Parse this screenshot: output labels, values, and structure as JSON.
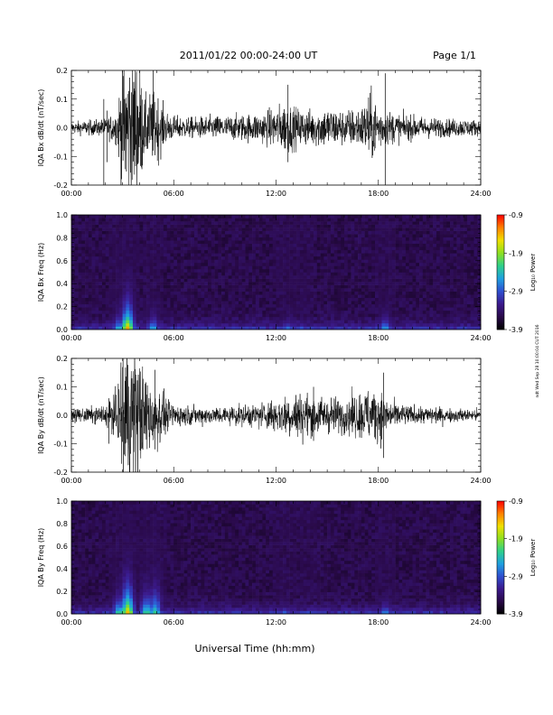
{
  "header": {
    "title": "2011/01/22  00:00-24:00 UT",
    "page": "Page 1/1"
  },
  "footer": {
    "xlabel": "Universal Time (hh:mm)",
    "stamp": "ndt Wed Sep 28 10:00:04 CUT 2016"
  },
  "colors": {
    "trace": "#000000",
    "spectrogram_background": "#1a0d2e",
    "colormap": [
      "#000000",
      "#2a0a4a",
      "#3b1a8c",
      "#2f4fd0",
      "#1fa0e0",
      "#2fd08a",
      "#8fe020",
      "#f0e000",
      "#ff8000",
      "#ff0000"
    ]
  },
  "chart_data": [
    {
      "type": "line",
      "panel": "Bx waveform",
      "ylabel": "IQA Bx dB/dt (nT/sec)",
      "x_unit": "hours UT",
      "xlim": [
        0,
        24
      ],
      "ylim": [
        -0.2,
        0.2
      ],
      "xticks": [
        "00:00",
        "06:00",
        "12:00",
        "18:00",
        "24:00"
      ],
      "yticks": [
        "-0.2",
        "-0.1",
        "0.0",
        "0.1",
        "0.2"
      ],
      "envelope": {
        "x": [
          0,
          1,
          2,
          2.7,
          3.0,
          3.5,
          3.9,
          4.3,
          4.7,
          5.0,
          5.5,
          6,
          7,
          8,
          9,
          10,
          11,
          11.5,
          12,
          12.7,
          13,
          14,
          15,
          16,
          17,
          17.5,
          18,
          18.5,
          19,
          20,
          21,
          22,
          23,
          24
        ],
        "amplitude": [
          0.02,
          0.025,
          0.03,
          0.06,
          0.25,
          0.25,
          0.25,
          0.1,
          0.12,
          0.12,
          0.06,
          0.04,
          0.035,
          0.04,
          0.04,
          0.045,
          0.05,
          0.06,
          0.07,
          0.09,
          0.07,
          0.06,
          0.07,
          0.06,
          0.07,
          0.12,
          0.08,
          0.06,
          0.05,
          0.04,
          0.035,
          0.03,
          0.03,
          0.025
        ]
      },
      "spikes": [
        {
          "x": 1.9,
          "y_min": -0.2,
          "y_max": 0.1
        },
        {
          "x": 2.1,
          "y_min": -0.12,
          "y_max": 0.06
        },
        {
          "x": 4.8,
          "y_min": -0.08,
          "y_max": 0.2
        },
        {
          "x": 12.7,
          "y_min": -0.12,
          "y_max": 0.15
        },
        {
          "x": 18.4,
          "y_min": -0.2,
          "y_max": 0.19
        }
      ]
    },
    {
      "type": "heatmap",
      "panel": "Bx spectrogram",
      "ylabel": "IQA Bx Freq (Hz)",
      "xlim": [
        0,
        24
      ],
      "ylim": [
        0.0,
        1.0
      ],
      "xticks": [
        "00:00",
        "06:00",
        "12:00",
        "18:00",
        "24:00"
      ],
      "yticks": [
        "0.0",
        "0.2",
        "0.4",
        "0.6",
        "0.8",
        "1.0"
      ],
      "colorbar": {
        "label": "Log₁₀ Power",
        "ticks": [
          "-0.9",
          "-1.9",
          "-2.9",
          "-3.9"
        ],
        "range": [
          -3.9,
          -0.9
        ]
      },
      "hotspots": [
        {
          "t": 3.3,
          "f_max": 0.3,
          "peak": -1.2
        },
        {
          "t": 2.8,
          "f_max": 0.15,
          "peak": -2.2
        },
        {
          "t": 4.8,
          "f_max": 0.15,
          "peak": -2.3
        },
        {
          "t": 12.7,
          "f_max": 0.1,
          "peak": -2.5
        },
        {
          "t": 13.5,
          "f_max": 0.08,
          "peak": -2.6
        },
        {
          "t": 18.4,
          "f_max": 0.15,
          "peak": -2.4
        }
      ]
    },
    {
      "type": "line",
      "panel": "By waveform",
      "ylabel": "IQA By dB/dt (nT/sec)",
      "x_unit": "hours UT",
      "xlim": [
        0,
        24
      ],
      "ylim": [
        -0.2,
        0.2
      ],
      "xticks": [
        "00:00",
        "06:00",
        "12:00",
        "18:00",
        "24:00"
      ],
      "yticks": [
        "-0.2",
        "-0.1",
        "0.0",
        "0.1",
        "0.2"
      ],
      "envelope": {
        "x": [
          0,
          1,
          2,
          2.7,
          3.0,
          3.5,
          3.9,
          4.3,
          4.7,
          5.0,
          5.5,
          6,
          7,
          8,
          9,
          10,
          11,
          11.5,
          12,
          12.7,
          13,
          14,
          15,
          16,
          17,
          17.5,
          18,
          18.5,
          19,
          20,
          21,
          22,
          23,
          24
        ],
        "amplitude": [
          0.02,
          0.025,
          0.035,
          0.08,
          0.25,
          0.25,
          0.25,
          0.12,
          0.15,
          0.12,
          0.06,
          0.04,
          0.03,
          0.03,
          0.03,
          0.035,
          0.04,
          0.05,
          0.06,
          0.07,
          0.08,
          0.07,
          0.06,
          0.06,
          0.08,
          0.1,
          0.09,
          0.06,
          0.04,
          0.03,
          0.03,
          0.025,
          0.02,
          0.02
        ]
      },
      "spikes": [
        {
          "x": 2.2,
          "y_min": -0.1,
          "y_max": 0.06
        },
        {
          "x": 4.9,
          "y_min": -0.12,
          "y_max": 0.16
        },
        {
          "x": 14.2,
          "y_min": -0.09,
          "y_max": 0.1
        },
        {
          "x": 18.3,
          "y_min": -0.15,
          "y_max": 0.15
        }
      ]
    },
    {
      "type": "heatmap",
      "panel": "By spectrogram",
      "ylabel": "IQA By Freq (Hz)",
      "xlim": [
        0,
        24
      ],
      "ylim": [
        0.0,
        1.0
      ],
      "xticks": [
        "00:00",
        "06:00",
        "12:00",
        "18:00",
        "24:00"
      ],
      "yticks": [
        "0.0",
        "0.2",
        "0.4",
        "0.6",
        "0.8",
        "1.0"
      ],
      "colorbar": {
        "label": "Log₁₀ Power",
        "ticks": [
          "-0.9",
          "-1.9",
          "-2.9",
          "-3.9"
        ],
        "range": [
          -3.9,
          -0.9
        ]
      },
      "hotspots": [
        {
          "t": 3.3,
          "f_max": 0.35,
          "peak": -1.3
        },
        {
          "t": 2.8,
          "f_max": 0.2,
          "peak": -2.0
        },
        {
          "t": 4.4,
          "f_max": 0.25,
          "peak": -2.0
        },
        {
          "t": 4.9,
          "f_max": 0.3,
          "peak": -2.1
        },
        {
          "t": 12.5,
          "f_max": 0.08,
          "peak": -2.6
        },
        {
          "t": 14.0,
          "f_max": 0.06,
          "peak": -2.6
        },
        {
          "t": 18.4,
          "f_max": 0.12,
          "peak": -2.5
        }
      ]
    }
  ]
}
